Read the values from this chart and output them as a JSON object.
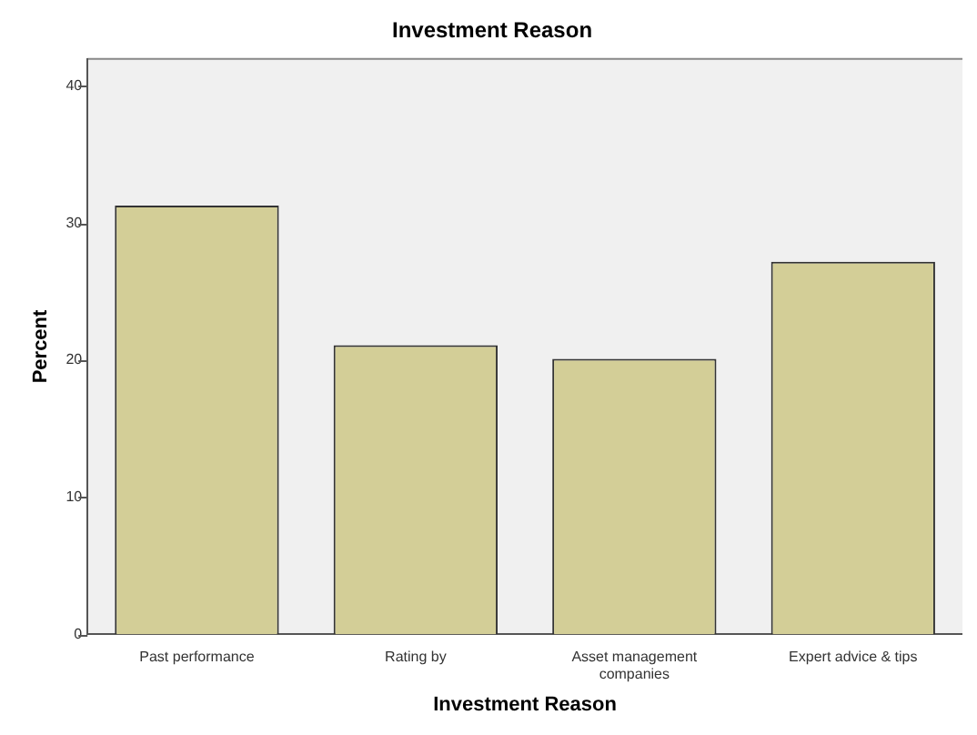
{
  "chart_data": {
    "type": "bar",
    "title": "Investment Reason",
    "xlabel": "Investment Reason",
    "ylabel": "Percent",
    "categories": [
      "Past performance",
      "Rating by",
      "Asset management companies",
      "Expert advice & tips"
    ],
    "values": [
      31.3,
      21.1,
      20.1,
      27.2
    ],
    "color": "#d3ce97",
    "ylim": [
      0,
      42
    ],
    "yticks": [
      0,
      10,
      20,
      30,
      40
    ],
    "grid": false,
    "legend": false
  }
}
